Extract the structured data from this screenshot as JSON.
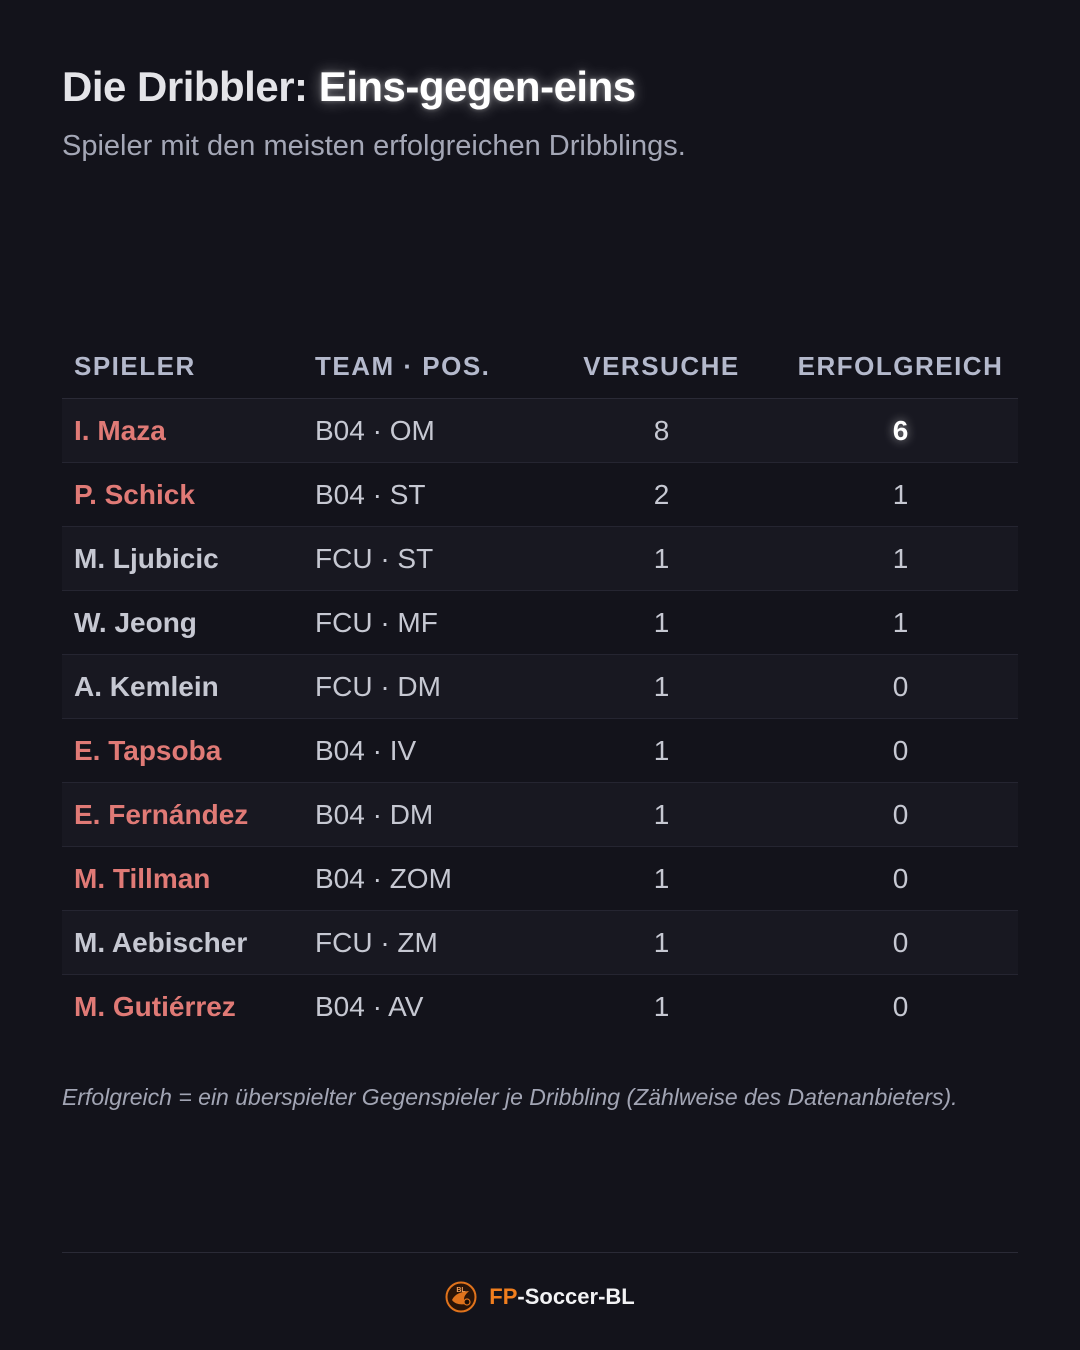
{
  "header": {
    "title_main": "Die Dribbler: ",
    "title_accent": "Eins-gegen-eins",
    "subtitle": "Spieler mit den meisten erfolgreichen Dribblings."
  },
  "table": {
    "columns": {
      "player": "SPIELER",
      "team_pos": "TEAM · POS.",
      "attempts": "VERSUCHE",
      "successful": "ERFOLGREICH"
    },
    "rows": [
      {
        "player": "I. Maza",
        "team_pos": "B04 · OM",
        "attempts": "8",
        "successful": "6"
      },
      {
        "player": "P. Schick",
        "team_pos": "B04 · ST",
        "attempts": "2",
        "successful": "1"
      },
      {
        "player": "M. Ljubicic",
        "team_pos": "FCU · ST",
        "attempts": "1",
        "successful": "1"
      },
      {
        "player": "W. Jeong",
        "team_pos": "FCU · MF",
        "attempts": "1",
        "successful": "1"
      },
      {
        "player": "A. Kemlein",
        "team_pos": "FCU · DM",
        "attempts": "1",
        "successful": "0"
      },
      {
        "player": "E. Tapsoba",
        "team_pos": "B04 · IV",
        "attempts": "1",
        "successful": "0"
      },
      {
        "player": "E. Fernández",
        "team_pos": "B04 · DM",
        "attempts": "1",
        "successful": "0"
      },
      {
        "player": "M. Tillman",
        "team_pos": "B04 · ZOM",
        "attempts": "1",
        "successful": "0"
      },
      {
        "player": "M. Aebischer",
        "team_pos": "FCU · ZM",
        "attempts": "1",
        "successful": "0"
      },
      {
        "player": "M. Gutiérrez",
        "team_pos": "B04 · AV",
        "attempts": "1",
        "successful": "0"
      }
    ]
  },
  "footnote": "Erfolgreich = ein überspielter Gegenspieler je Dribbling (Zählweise des Datenanbieters).",
  "brand": {
    "prefix": "FP",
    "suffix": "-Soccer-BL",
    "logo_icon": "fp-soccer-bl-logo-icon",
    "logo_text": "BL"
  },
  "colors": {
    "background": "#13131b",
    "b04_player": "#e07a76",
    "fcu_player": "#e8e8ec",
    "brand_accent": "#f07e1e"
  }
}
